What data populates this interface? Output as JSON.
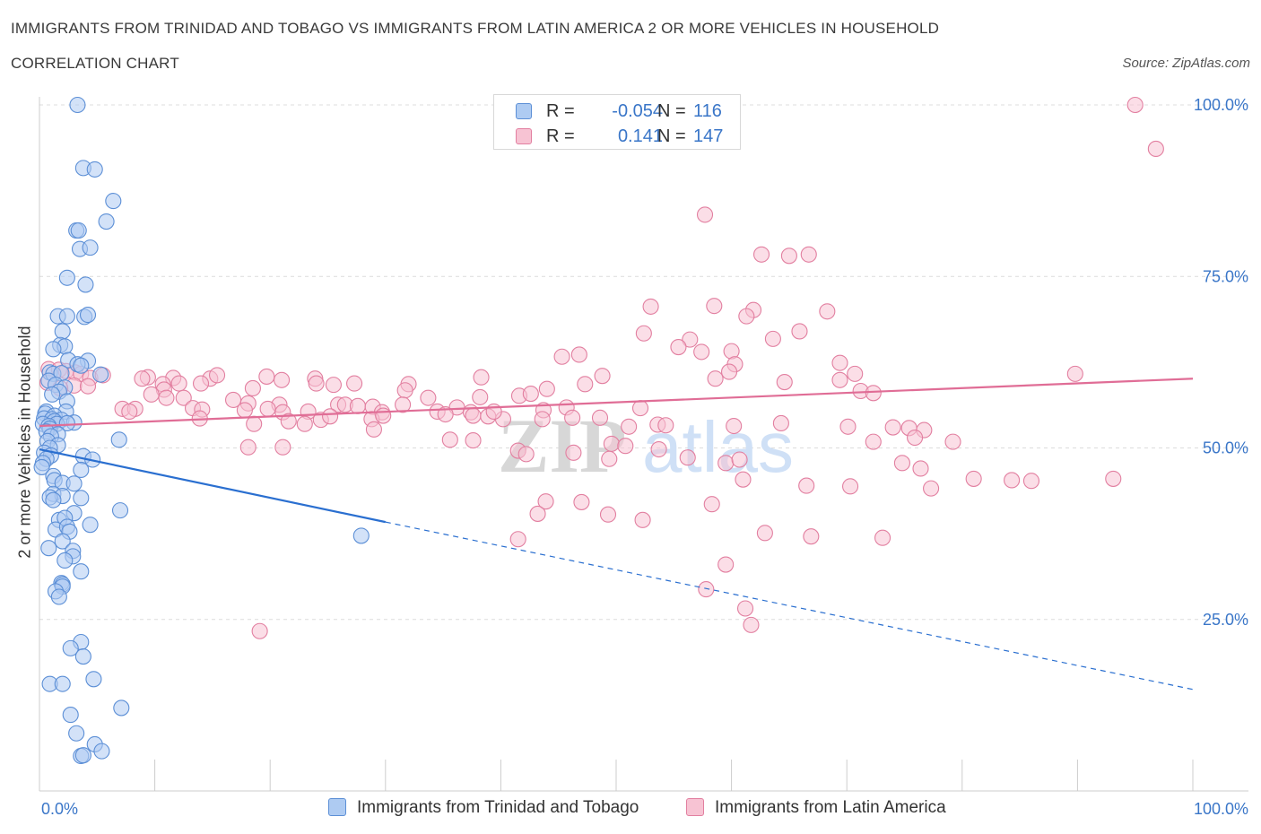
{
  "title": "IMMIGRANTS FROM TRINIDAD AND TOBAGO VS IMMIGRANTS FROM LATIN AMERICA 2 OR MORE VEHICLES IN HOUSEHOLD",
  "subtitle": "CORRELATION CHART",
  "source": "Source: ZipAtlas.com",
  "watermark": {
    "zip": "ZIP",
    "atlas": "atlas"
  },
  "legend": {
    "rows": [
      {
        "r_label": "R =",
        "r_value": "-0.054",
        "n_label": "N =",
        "n_value": "116",
        "color": "#aecbf2",
        "border": "#5c8fd6"
      },
      {
        "r_label": "R =",
        "r_value": "0.141",
        "n_label": "N =",
        "n_value": "147",
        "color": "#f7c3d3",
        "border": "#e27fa0"
      }
    ]
  },
  "bottom_legend": {
    "series1": "Immigrants from Trinidad and Tobago",
    "series2": "Immigrants from Latin America"
  },
  "chart_data": {
    "type": "scatter",
    "title": "IMMIGRANTS FROM TRINIDAD AND TOBAGO VS IMMIGRANTS FROM LATIN AMERICA 2 OR MORE VEHICLES IN HOUSEHOLD",
    "xlabel": "",
    "ylabel": "2 or more Vehicles in Household",
    "xlim": [
      0,
      100
    ],
    "ylim": [
      0,
      100
    ],
    "x_tick_labels": [
      "0.0%",
      "100.0%"
    ],
    "y_tick_labels": [
      "100.0%",
      "75.0%",
      "50.0%",
      "25.0%"
    ],
    "y_ticks": [
      100,
      75,
      50,
      25
    ],
    "grid": true,
    "legend_position": "top-center",
    "series": [
      {
        "name": "Immigrants from Trinidad and Tobago",
        "color": "#5c8fd6",
        "fill": "#aecbf2",
        "line_color": "#2a6fd0",
        "trend": {
          "x": [
            0,
            30
          ],
          "y": [
            49.8,
            39.2
          ],
          "dashed_to": [
            100,
            14.8
          ]
        },
        "points": [
          [
            3.3,
            100
          ],
          [
            3.8,
            90.8
          ],
          [
            4.8,
            90.6
          ],
          [
            6.4,
            86
          ],
          [
            5.8,
            83
          ],
          [
            3.2,
            81.7
          ],
          [
            3.4,
            81.7
          ],
          [
            3.5,
            79
          ],
          [
            4.4,
            79.2
          ],
          [
            2.4,
            74.8
          ],
          [
            4,
            73.8
          ],
          [
            1.6,
            69.2
          ],
          [
            2.4,
            69.2
          ],
          [
            3.9,
            69.1
          ],
          [
            4.2,
            69.4
          ],
          [
            2,
            67
          ],
          [
            1.8,
            65
          ],
          [
            2.2,
            64.8
          ],
          [
            1.2,
            64.4
          ],
          [
            2.5,
            62.8
          ],
          [
            4.2,
            62.7
          ],
          [
            3.3,
            62.2
          ],
          [
            3.6,
            62
          ],
          [
            0.9,
            61
          ],
          [
            1.2,
            60.8
          ],
          [
            1.9,
            60.9
          ],
          [
            5.3,
            60.7
          ],
          [
            0.8,
            59.8
          ],
          [
            1.4,
            59.2
          ],
          [
            2.2,
            58.8
          ],
          [
            1.7,
            58.2
          ],
          [
            1.1,
            57.8
          ],
          [
            2.4,
            56.8
          ],
          [
            0.6,
            55.3
          ],
          [
            2.3,
            55.3
          ],
          [
            0.5,
            55
          ],
          [
            1.3,
            54.7
          ],
          [
            0.4,
            54.3
          ],
          [
            1.1,
            54.2
          ],
          [
            1.9,
            54.1
          ],
          [
            1.3,
            53.9
          ],
          [
            1.5,
            53.5
          ],
          [
            3,
            53.7
          ],
          [
            0.3,
            53.5
          ],
          [
            2.4,
            53.6
          ],
          [
            0.8,
            53.2
          ],
          [
            0.9,
            52.8
          ],
          [
            0.6,
            52.4
          ],
          [
            1.6,
            52
          ],
          [
            1,
            51.7
          ],
          [
            0.7,
            51
          ],
          [
            6.9,
            51.2
          ],
          [
            1.6,
            50.4
          ],
          [
            0.9,
            50
          ],
          [
            0.4,
            49.3
          ],
          [
            1,
            48.9
          ],
          [
            0.6,
            48.4
          ],
          [
            3.8,
            48.8
          ],
          [
            4.6,
            48.3
          ],
          [
            0.3,
            47.8
          ],
          [
            0.2,
            47.2
          ],
          [
            3.6,
            46.8
          ],
          [
            1.2,
            45.9
          ],
          [
            1.3,
            45.3
          ],
          [
            2,
            44.9
          ],
          [
            3,
            44.8
          ],
          [
            1.2,
            43.3
          ],
          [
            2,
            43
          ],
          [
            0.9,
            42.8
          ],
          [
            3.6,
            42.7
          ],
          [
            1.2,
            42.4
          ],
          [
            7,
            40.9
          ],
          [
            3,
            40.5
          ],
          [
            1.7,
            39.5
          ],
          [
            2.2,
            39.8
          ],
          [
            4.4,
            38.8
          ],
          [
            1.4,
            38.1
          ],
          [
            2.4,
            38.5
          ],
          [
            2.6,
            37.8
          ],
          [
            27.9,
            37.2
          ],
          [
            2,
            36.4
          ],
          [
            2.9,
            35
          ],
          [
            0.8,
            35.4
          ],
          [
            2.9,
            34.2
          ],
          [
            2.2,
            33.6
          ],
          [
            3.6,
            32
          ],
          [
            1.9,
            30.3
          ],
          [
            2,
            30.1
          ],
          [
            2,
            29.8
          ],
          [
            1.4,
            29.1
          ],
          [
            1.7,
            28.3
          ],
          [
            3.6,
            21.7
          ],
          [
            2.7,
            20.8
          ],
          [
            3.8,
            19.6
          ],
          [
            4.7,
            16.3
          ],
          [
            0.9,
            15.6
          ],
          [
            2,
            15.6
          ],
          [
            7.1,
            12.1
          ],
          [
            2.7,
            11.1
          ],
          [
            3.2,
            8.4
          ],
          [
            4.8,
            6.8
          ],
          [
            5.4,
            5.8
          ],
          [
            3.6,
            5.1
          ],
          [
            3.8,
            5.2
          ]
        ]
      },
      {
        "name": "Immigrants from Latin America",
        "color": "#e27fa0",
        "fill": "#f7c3d3",
        "line_color": "#e06d96",
        "trend": {
          "x": [
            0,
            100
          ],
          "y": [
            53.2,
            60.1
          ]
        },
        "points": [
          [
            95,
            100
          ],
          [
            96.8,
            93.6
          ],
          [
            57.7,
            84
          ],
          [
            62.6,
            78.2
          ],
          [
            65,
            78
          ],
          [
            66.7,
            78.2
          ],
          [
            53,
            70.6
          ],
          [
            58.5,
            70.7
          ],
          [
            61.9,
            70.1
          ],
          [
            61.3,
            69.2
          ],
          [
            68.3,
            69.9
          ],
          [
            52.4,
            66.7
          ],
          [
            56.4,
            65.8
          ],
          [
            65.9,
            67
          ],
          [
            63.6,
            65.9
          ],
          [
            55.4,
            64.7
          ],
          [
            60,
            64.1
          ],
          [
            57.4,
            64
          ],
          [
            45.3,
            63.3
          ],
          [
            46.8,
            63.6
          ],
          [
            60.3,
            62.2
          ],
          [
            69.4,
            62.4
          ],
          [
            59.8,
            61.1
          ],
          [
            70.7,
            60.8
          ],
          [
            89.8,
            60.8
          ],
          [
            0.8,
            61.5
          ],
          [
            1.7,
            61.4
          ],
          [
            2.3,
            61.2
          ],
          [
            3.1,
            61
          ],
          [
            3.6,
            60.8
          ],
          [
            4.4,
            60.2
          ],
          [
            0.7,
            59.5
          ],
          [
            3,
            59.1
          ],
          [
            4.2,
            59
          ],
          [
            1.8,
            58.7
          ],
          [
            5.5,
            60.6
          ],
          [
            9.4,
            60.3
          ],
          [
            11.6,
            60.2
          ],
          [
            14.8,
            60.1
          ],
          [
            15.4,
            60.6
          ],
          [
            19.7,
            60.4
          ],
          [
            23.9,
            60.1
          ],
          [
            38.3,
            60.3
          ],
          [
            48.8,
            60.5
          ],
          [
            58.6,
            60.1
          ],
          [
            8.9,
            60.1
          ],
          [
            10.7,
            59.3
          ],
          [
            12.1,
            59.4
          ],
          [
            14,
            59.4
          ],
          [
            21,
            59.9
          ],
          [
            24,
            59.4
          ],
          [
            25.5,
            59.2
          ],
          [
            27.3,
            59.4
          ],
          [
            32,
            59.3
          ],
          [
            44,
            58.6
          ],
          [
            47.3,
            59.3
          ],
          [
            64.6,
            59.6
          ],
          [
            69.4,
            59.9
          ],
          [
            71.2,
            58.3
          ],
          [
            72.3,
            58
          ],
          [
            10.8,
            58.5
          ],
          [
            9.7,
            57.8
          ],
          [
            18.5,
            58.7
          ],
          [
            31.7,
            58.4
          ],
          [
            33.7,
            57.3
          ],
          [
            38.2,
            57.4
          ],
          [
            41.6,
            57.6
          ],
          [
            42.6,
            57.9
          ],
          [
            11,
            57.3
          ],
          [
            12.5,
            57.3
          ],
          [
            16.8,
            57
          ],
          [
            20.8,
            56.3
          ],
          [
            18.1,
            56.5
          ],
          [
            25.9,
            56.3
          ],
          [
            26.5,
            56.3
          ],
          [
            27.6,
            56.1
          ],
          [
            28.9,
            56
          ],
          [
            31.5,
            56.3
          ],
          [
            36.2,
            55.9
          ],
          [
            37.4,
            55.2
          ],
          [
            45.7,
            55.9
          ],
          [
            52.1,
            55.8
          ],
          [
            7.2,
            55.7
          ],
          [
            8.3,
            55.7
          ],
          [
            13.3,
            55.8
          ],
          [
            14.1,
            55.6
          ],
          [
            19.8,
            55.7
          ],
          [
            23.3,
            55.3
          ],
          [
            29.7,
            55.2
          ],
          [
            34.5,
            55.3
          ],
          [
            35.2,
            54.9
          ],
          [
            37.6,
            54.7
          ],
          [
            38.9,
            54.6
          ],
          [
            40.2,
            54.2
          ],
          [
            7.8,
            55.3
          ],
          [
            13.9,
            54.3
          ],
          [
            17.8,
            55.5
          ],
          [
            21.1,
            55.2
          ],
          [
            24.4,
            54.1
          ],
          [
            25.2,
            54.6
          ],
          [
            28.8,
            54.2
          ],
          [
            29.8,
            54.7
          ],
          [
            39.4,
            55.3
          ],
          [
            43.7,
            55.5
          ],
          [
            46.2,
            54.4
          ],
          [
            48.6,
            54.4
          ],
          [
            18.6,
            53.5
          ],
          [
            21.6,
            53.9
          ],
          [
            23,
            53.5
          ],
          [
            29,
            52.7
          ],
          [
            43.6,
            54.2
          ],
          [
            51.1,
            53.1
          ],
          [
            53.6,
            53.4
          ],
          [
            54.3,
            53.3
          ],
          [
            60.2,
            53.2
          ],
          [
            64.3,
            53.6
          ],
          [
            70.1,
            53.1
          ],
          [
            74,
            53
          ],
          [
            75.4,
            52.9
          ],
          [
            76.7,
            52.6
          ],
          [
            35.6,
            51.2
          ],
          [
            37.6,
            51.1
          ],
          [
            49.6,
            50.6
          ],
          [
            50.8,
            50.3
          ],
          [
            53.7,
            49.8
          ],
          [
            72.3,
            50.9
          ],
          [
            75.9,
            51.5
          ],
          [
            79.2,
            50.9
          ],
          [
            18.1,
            50.1
          ],
          [
            21.1,
            50.1
          ],
          [
            41.5,
            49.6
          ],
          [
            42.2,
            49.1
          ],
          [
            46.3,
            49.3
          ],
          [
            49.4,
            48.4
          ],
          [
            56.2,
            48.6
          ],
          [
            59.5,
            47.8
          ],
          [
            60.7,
            48.3
          ],
          [
            74.8,
            47.8
          ],
          [
            76.4,
            47
          ],
          [
            61,
            45.4
          ],
          [
            66.5,
            44.5
          ],
          [
            70.3,
            44.4
          ],
          [
            77.3,
            44.1
          ],
          [
            81,
            45.5
          ],
          [
            84.3,
            45.3
          ],
          [
            86,
            45.2
          ],
          [
            93.1,
            45.5
          ],
          [
            43.9,
            42.2
          ],
          [
            47,
            42.1
          ],
          [
            58.3,
            41.8
          ],
          [
            52.3,
            39.5
          ],
          [
            73.1,
            36.9
          ],
          [
            62.9,
            37.6
          ],
          [
            66.9,
            37.1
          ],
          [
            41.5,
            36.7
          ],
          [
            43.2,
            40.4
          ],
          [
            49.3,
            40.3
          ],
          [
            59.5,
            33
          ],
          [
            57.8,
            29.4
          ],
          [
            61.2,
            26.6
          ],
          [
            61.7,
            24.2
          ],
          [
            19.1,
            23.3
          ]
        ]
      }
    ]
  }
}
